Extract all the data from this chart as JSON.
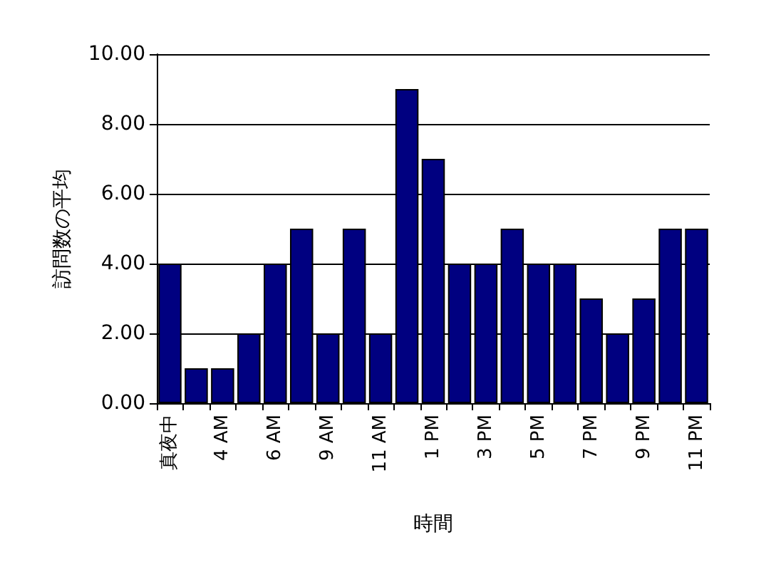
{
  "chart_data": {
    "type": "bar",
    "xlabel": "時間",
    "ylabel": "訪問数の平均",
    "categories": [
      "真夜中",
      null,
      "4 AM",
      null,
      "6 AM",
      null,
      "9 AM",
      null,
      "11 AM",
      null,
      "1 PM",
      null,
      "3 PM",
      null,
      "5 PM",
      null,
      "7 PM",
      null,
      "9 PM",
      null,
      "11 PM"
    ],
    "values": [
      4,
      1,
      1,
      2,
      4,
      5,
      2,
      5,
      2,
      9,
      7,
      4,
      4,
      5,
      4,
      4,
      3,
      2,
      3,
      5,
      5
    ],
    "color": "#000080",
    "ylim": [
      0,
      10
    ],
    "yticks": [
      {
        "value": 0,
        "label": "0.00"
      },
      {
        "value": 2,
        "label": "2.00"
      },
      {
        "value": 4,
        "label": "4.00"
      },
      {
        "value": 6,
        "label": "6.00"
      },
      {
        "value": 8,
        "label": "8.00"
      },
      {
        "value": 10,
        "label": "10.00"
      }
    ],
    "grid": "y"
  }
}
